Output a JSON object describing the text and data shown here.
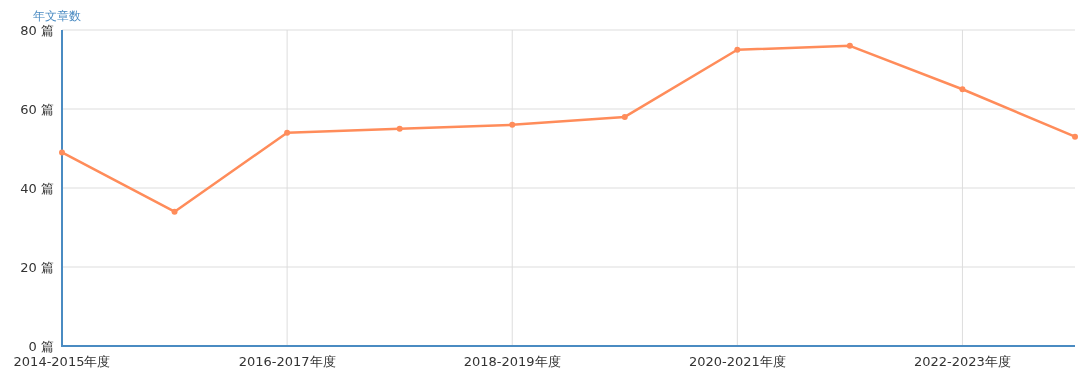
{
  "chart_data": {
    "type": "line",
    "ylabel": "年文章数",
    "categories": [
      "2014-2015年度",
      null,
      "2016-2017年度",
      null,
      "2018-2019年度",
      null,
      "2020-2021年度",
      null,
      "2022-2023年度",
      null
    ],
    "series": [
      {
        "color": "#ff8c5a",
        "values": [
          49,
          34,
          54,
          55,
          56,
          58,
          75,
          76,
          65,
          53
        ]
      }
    ],
    "ylim": [
      0,
      80
    ],
    "yticks": [
      {
        "value": 0,
        "label": "0 篇"
      },
      {
        "value": 20,
        "label": "20 篇"
      },
      {
        "value": 40,
        "label": "40 篇"
      },
      {
        "value": 60,
        "label": "60 篇"
      },
      {
        "value": 80,
        "label": "80 篇"
      }
    ],
    "grid": true,
    "marker": "circle",
    "line_style": "solid"
  }
}
